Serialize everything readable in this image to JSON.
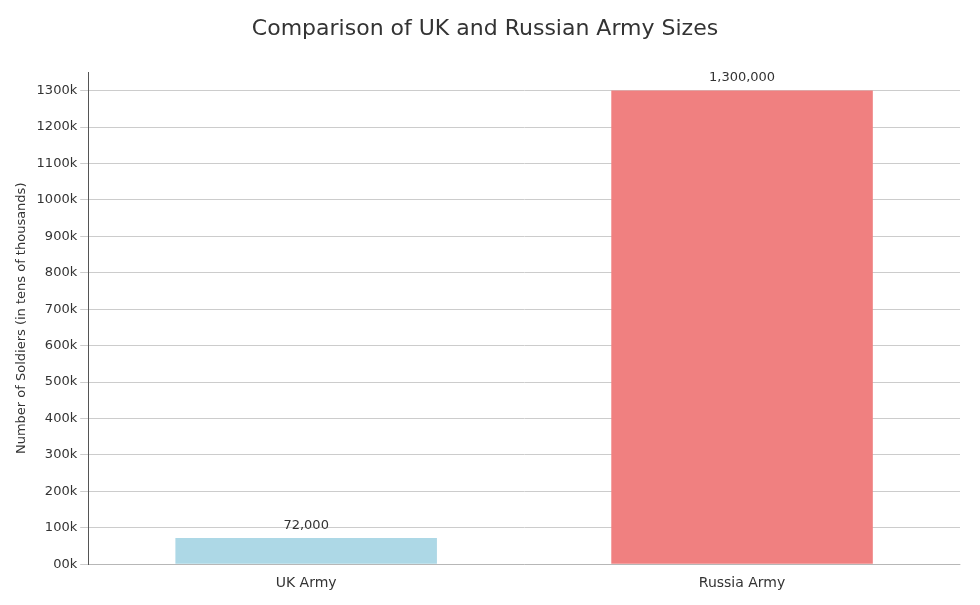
{
  "chart_data": {
    "type": "bar",
    "title": "Comparison of UK and Russian Army Sizes",
    "categories": [
      "UK Army",
      "Russia Army"
    ],
    "values": [
      72000,
      1300000
    ],
    "colors": [
      "#add8e6",
      "#f08080"
    ],
    "data_labels": true,
    "value_labels": [
      "72,000",
      "1,300,000"
    ],
    "ylabel": "Number of Soldiers (in tens of thousands)",
    "ylim": [
      0,
      1350000
    ],
    "yticks": [
      {
        "value": 0,
        "label": "00k"
      },
      {
        "value": 100000,
        "label": "100k"
      },
      {
        "value": 200000,
        "label": "200k"
      },
      {
        "value": 300000,
        "label": "300k"
      },
      {
        "value": 400000,
        "label": "400k"
      },
      {
        "value": 500000,
        "label": "500k"
      },
      {
        "value": 600000,
        "label": "600k"
      },
      {
        "value": 700000,
        "label": "700k"
      },
      {
        "value": 800000,
        "label": "800k"
      },
      {
        "value": 900000,
        "label": "900k"
      },
      {
        "value": 1000000,
        "label": "1000k"
      },
      {
        "value": 1100000,
        "label": "1100k"
      },
      {
        "value": 1200000,
        "label": "1200k"
      },
      {
        "value": 1300000,
        "label": "1300k"
      }
    ],
    "grid": true
  }
}
